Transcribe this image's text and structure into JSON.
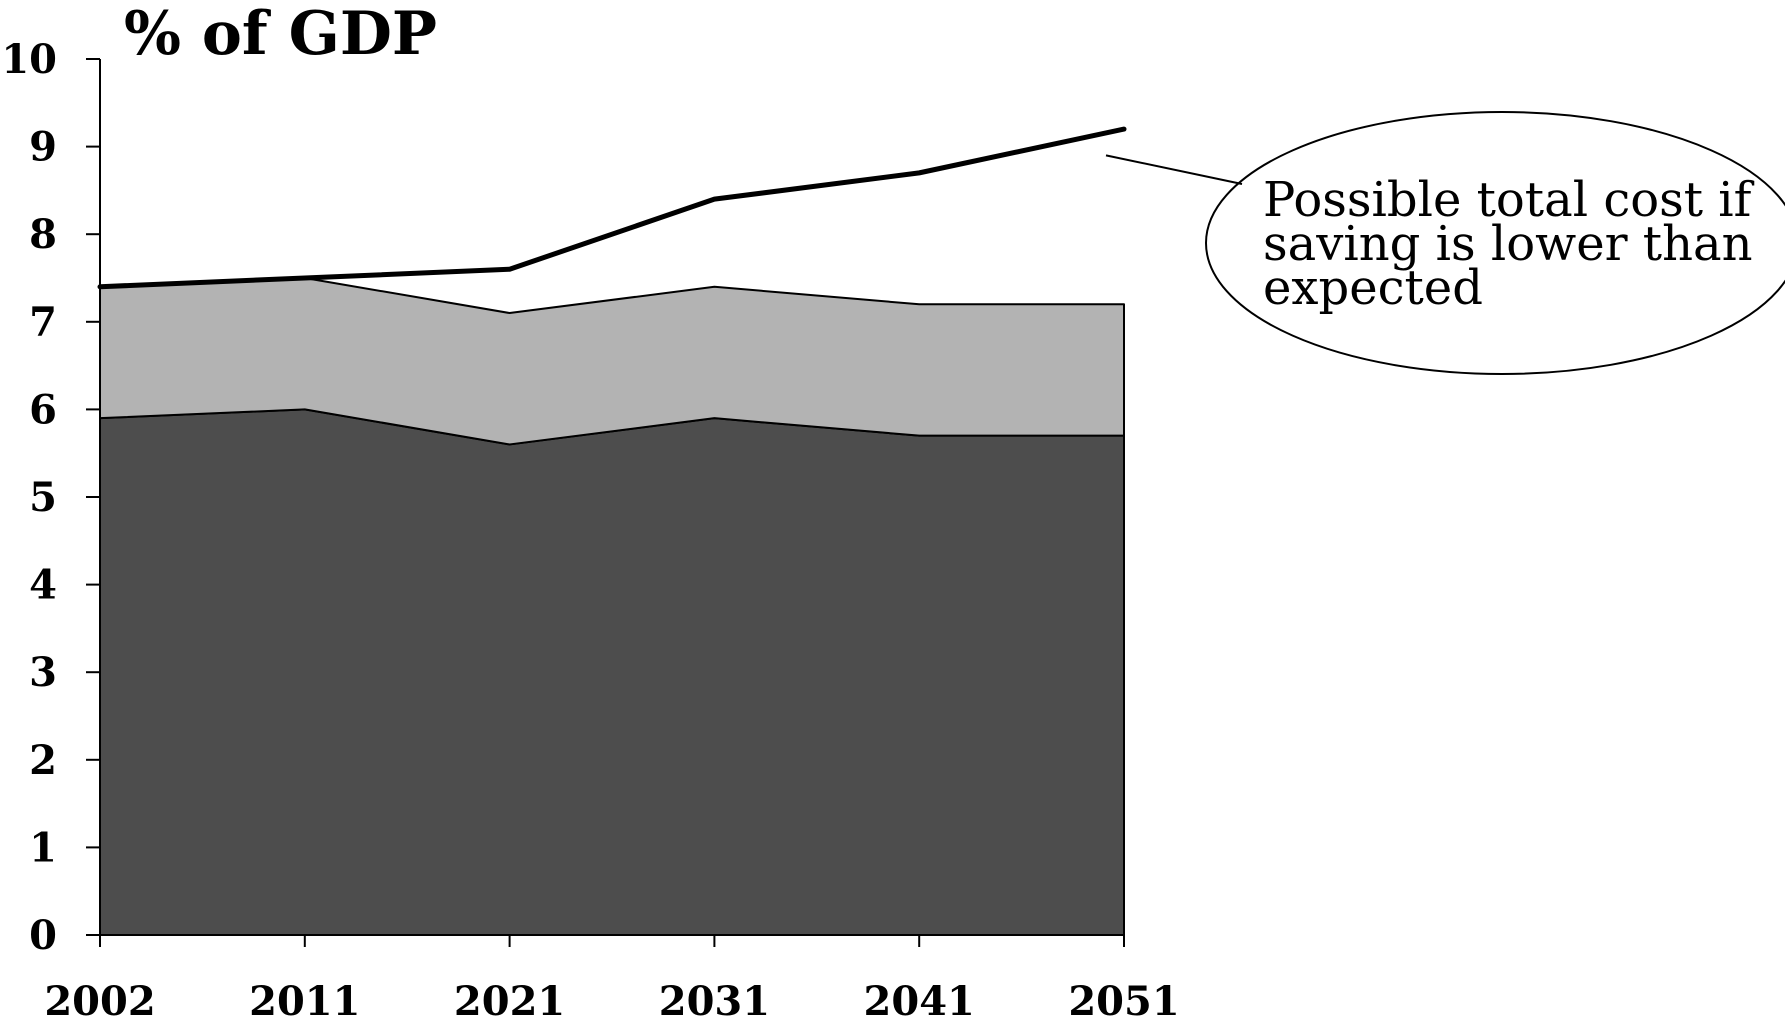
{
  "chart_data": {
    "type": "area",
    "title": "% of GDP",
    "categories": [
      "2002",
      "2011",
      "2021",
      "2031",
      "2041",
      "2051"
    ],
    "ylim": [
      0,
      10
    ],
    "yticks": [
      0,
      1,
      2,
      3,
      4,
      5,
      6,
      7,
      8,
      9,
      10
    ],
    "grid": false,
    "stacked": true,
    "series": [
      {
        "kind": "area",
        "values": [
          5.9,
          6.0,
          5.6,
          5.9,
          5.7,
          5.7
        ],
        "color": "#4d4d4d"
      },
      {
        "kind": "area",
        "values": [
          1.5,
          1.5,
          1.5,
          1.5,
          1.5,
          1.5
        ],
        "color": "#b3b3b3"
      },
      {
        "kind": "line",
        "values": [
          7.4,
          7.5,
          7.6,
          8.4,
          8.7,
          9.2
        ],
        "color": "#000000"
      }
    ],
    "annotations": [
      {
        "lines": [
          "Possible total cost if",
          "saving is lower than",
          "expected"
        ],
        "target_category": "2051",
        "target_value": 8.9
      }
    ]
  }
}
